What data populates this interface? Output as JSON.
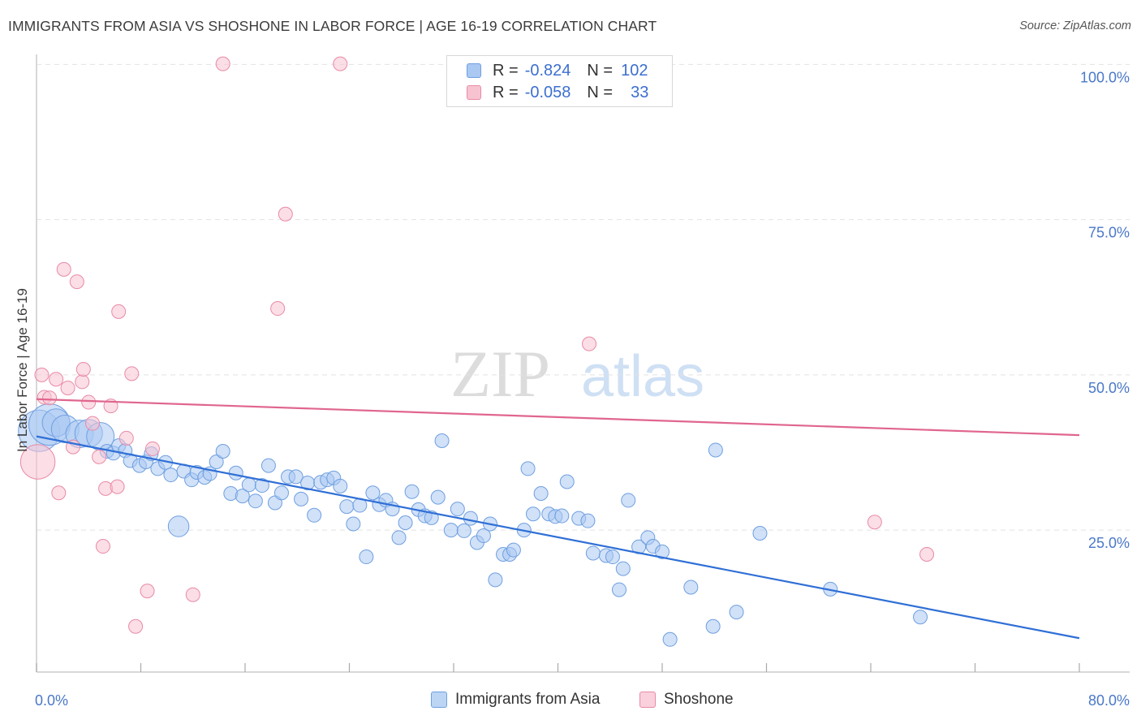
{
  "title": "IMMIGRANTS FROM ASIA VS SHOSHONE IN LABOR FORCE | AGE 16-19 CORRELATION CHART",
  "source": "Source: ZipAtlas.com",
  "watermark": {
    "zip": "ZIP",
    "atlas": "atlas"
  },
  "legend": {
    "rows": [
      {
        "r_label": "R =",
        "r_value": "-0.824",
        "n_label": "N =",
        "n_value": "102",
        "color": "#a9c8f2",
        "border": "#6f9fe0"
      },
      {
        "r_label": "R =",
        "r_value": "-0.058",
        "n_label": "N =",
        "n_value": "33",
        "color": "#f7c3d1",
        "border": "#e98aa6"
      }
    ]
  },
  "bottom_legend": [
    {
      "label": "Immigrants from Asia",
      "color": "#bcd5f5",
      "border": "#6f9fe0"
    },
    {
      "label": "Shoshone",
      "color": "#f9d0dc",
      "border": "#e98aa6"
    }
  ],
  "chart_data": {
    "type": "scatter",
    "title": "IMMIGRANTS FROM ASIA VS SHOSHONE IN LABOR FORCE | AGE 16-19 CORRELATION CHART",
    "xlabel": "",
    "ylabel": "In Labor Force | Age 16-19",
    "xlim": [
      0,
      80
    ],
    "ylim": [
      0,
      102
    ],
    "x_tick_labels": [
      {
        "value": 0,
        "label": "0.0%"
      },
      {
        "value": 80,
        "label": "80.0%"
      }
    ],
    "y_tick_labels": [
      {
        "value": 25,
        "label": "25.0%"
      },
      {
        "value": 50,
        "label": "50.0%"
      },
      {
        "value": 75,
        "label": "75.0%"
      },
      {
        "value": 100,
        "label": "100.0%"
      }
    ],
    "x_minor_ticks": [
      0,
      8,
      16,
      24,
      32,
      40,
      48,
      56,
      64,
      72,
      80
    ],
    "grid": true,
    "series": [
      {
        "name": "Immigrants from Asia",
        "color": "#a9c8f2",
        "edge": "#6f9fe0",
        "trend": {
          "x": [
            0,
            80
          ],
          "y": [
            40.1,
            7.6
          ],
          "color": "#2f6fd6"
        },
        "points": [
          [
            0.2,
            41,
            3
          ],
          [
            1.0,
            42,
            3
          ],
          [
            1.5,
            42.3,
            2
          ],
          [
            2.2,
            41.3,
            2
          ],
          [
            3.3,
            40.5,
            2
          ],
          [
            4.0,
            40.6,
            2
          ],
          [
            4.9,
            40.1,
            2
          ],
          [
            5.4,
            37.7,
            1
          ],
          [
            5.9,
            37.4,
            1
          ],
          [
            6.3,
            38.6,
            1
          ],
          [
            6.8,
            37.8,
            1
          ],
          [
            7.2,
            36.2,
            1
          ],
          [
            7.9,
            35.4,
            1
          ],
          [
            8.4,
            36.0,
            1
          ],
          [
            8.8,
            37.3,
            1
          ],
          [
            9.3,
            34.9,
            1
          ],
          [
            9.9,
            35.9,
            1
          ],
          [
            10.3,
            33.9,
            1
          ],
          [
            10.9,
            25.6,
            1.5
          ],
          [
            11.3,
            34.5,
            1
          ],
          [
            11.9,
            33.1,
            1
          ],
          [
            12.3,
            34.3,
            1
          ],
          [
            12.9,
            33.5,
            1
          ],
          [
            13.3,
            34.1,
            1
          ],
          [
            13.8,
            36.0,
            1
          ],
          [
            14.3,
            37.7,
            1
          ],
          [
            14.9,
            30.9,
            1
          ],
          [
            15.3,
            34.2,
            1
          ],
          [
            15.8,
            30.5,
            1
          ],
          [
            16.3,
            32.3,
            1
          ],
          [
            16.8,
            29.7,
            1
          ],
          [
            17.3,
            32.2,
            1
          ],
          [
            17.8,
            35.4,
            1
          ],
          [
            18.3,
            29.4,
            1
          ],
          [
            18.8,
            31.0,
            1
          ],
          [
            19.3,
            33.6,
            1
          ],
          [
            19.9,
            33.6,
            1
          ],
          [
            20.3,
            30.0,
            1
          ],
          [
            20.8,
            32.6,
            1
          ],
          [
            21.3,
            27.4,
            1
          ],
          [
            21.8,
            32.7,
            1
          ],
          [
            22.3,
            33.1,
            1
          ],
          [
            22.8,
            33.4,
            1
          ],
          [
            23.3,
            32.1,
            1
          ],
          [
            23.8,
            28.8,
            1
          ],
          [
            24.3,
            26.0,
            1
          ],
          [
            24.8,
            29.0,
            1
          ],
          [
            25.3,
            20.7,
            1
          ],
          [
            25.8,
            31.0,
            1
          ],
          [
            26.3,
            29.1,
            1
          ],
          [
            26.8,
            29.8,
            1
          ],
          [
            27.3,
            28.4,
            1
          ],
          [
            27.8,
            23.8,
            1
          ],
          [
            28.3,
            26.2,
            1
          ],
          [
            28.8,
            31.2,
            1
          ],
          [
            29.3,
            28.3,
            1
          ],
          [
            29.8,
            27.3,
            1
          ],
          [
            30.3,
            27.0,
            1
          ],
          [
            30.8,
            30.3,
            1
          ],
          [
            31.1,
            39.4,
            1
          ],
          [
            31.8,
            25.0,
            1
          ],
          [
            32.3,
            28.4,
            1
          ],
          [
            32.8,
            24.9,
            1
          ],
          [
            33.3,
            26.9,
            1
          ],
          [
            33.8,
            23.0,
            1
          ],
          [
            34.3,
            24.1,
            1
          ],
          [
            34.8,
            26.0,
            1
          ],
          [
            35.2,
            17.0,
            1
          ],
          [
            35.8,
            21.1,
            1
          ],
          [
            36.3,
            21.1,
            1
          ],
          [
            36.6,
            21.8,
            1
          ],
          [
            37.4,
            25.0,
            1
          ],
          [
            37.7,
            34.9,
            1
          ],
          [
            38.1,
            27.6,
            1
          ],
          [
            38.7,
            30.9,
            1
          ],
          [
            39.3,
            27.6,
            1
          ],
          [
            39.8,
            27.2,
            1
          ],
          [
            40.3,
            27.3,
            1
          ],
          [
            40.7,
            32.8,
            1
          ],
          [
            41.6,
            26.9,
            1
          ],
          [
            42.3,
            26.5,
            1
          ],
          [
            42.7,
            21.3,
            1
          ],
          [
            43.7,
            20.9,
            1
          ],
          [
            44.2,
            20.7,
            1
          ],
          [
            44.7,
            15.4,
            1
          ],
          [
            45.0,
            18.8,
            1
          ],
          [
            45.4,
            29.8,
            1
          ],
          [
            46.2,
            22.3,
            1
          ],
          [
            46.9,
            23.8,
            1
          ],
          [
            47.3,
            22.4,
            1
          ],
          [
            48.0,
            21.5,
            1
          ],
          [
            48.6,
            7.4,
            1
          ],
          [
            50.2,
            15.8,
            1
          ],
          [
            51.9,
            9.5,
            1
          ],
          [
            52.1,
            37.9,
            1
          ],
          [
            53.7,
            11.8,
            1
          ],
          [
            55.5,
            24.5,
            1
          ],
          [
            60.9,
            15.5,
            1
          ],
          [
            67.8,
            11.0,
            1
          ]
        ]
      },
      {
        "name": "Shoshone",
        "color": "#f7c3d1",
        "edge": "#e98aa6",
        "trend": {
          "x": [
            0,
            80
          ],
          "y": [
            46.1,
            40.3
          ],
          "color": "#e0668e"
        },
        "points": [
          [
            0.1,
            36,
            2.5
          ],
          [
            0.4,
            50,
            1
          ],
          [
            0.6,
            46.4,
            1
          ],
          [
            1.0,
            46.3,
            1
          ],
          [
            1.5,
            49.3,
            1
          ],
          [
            1.7,
            31.0,
            1
          ],
          [
            2.1,
            67.0,
            1
          ],
          [
            2.4,
            47.9,
            1
          ],
          [
            2.8,
            38.4,
            1
          ],
          [
            3.1,
            65.0,
            1
          ],
          [
            3.5,
            48.9,
            1
          ],
          [
            3.6,
            50.9,
            1
          ],
          [
            4.0,
            45.6,
            1
          ],
          [
            4.3,
            42.2,
            1
          ],
          [
            4.8,
            36.8,
            1
          ],
          [
            5.1,
            22.4,
            1
          ],
          [
            5.3,
            31.7,
            1
          ],
          [
            5.7,
            45.0,
            1
          ],
          [
            6.2,
            32.0,
            1
          ],
          [
            6.3,
            60.2,
            1
          ],
          [
            6.9,
            39.8,
            1
          ],
          [
            7.3,
            50.2,
            1
          ],
          [
            7.6,
            9.5,
            1
          ],
          [
            8.5,
            15.2,
            1
          ],
          [
            8.9,
            38.1,
            1
          ],
          [
            12.0,
            14.6,
            1
          ],
          [
            14.3,
            100.1,
            1
          ],
          [
            18.5,
            60.7,
            1
          ],
          [
            19.1,
            75.9,
            1
          ],
          [
            23.3,
            100.1,
            1
          ],
          [
            42.4,
            55.0,
            1
          ],
          [
            64.3,
            26.3,
            1
          ],
          [
            68.3,
            21.1,
            1
          ]
        ]
      }
    ]
  }
}
